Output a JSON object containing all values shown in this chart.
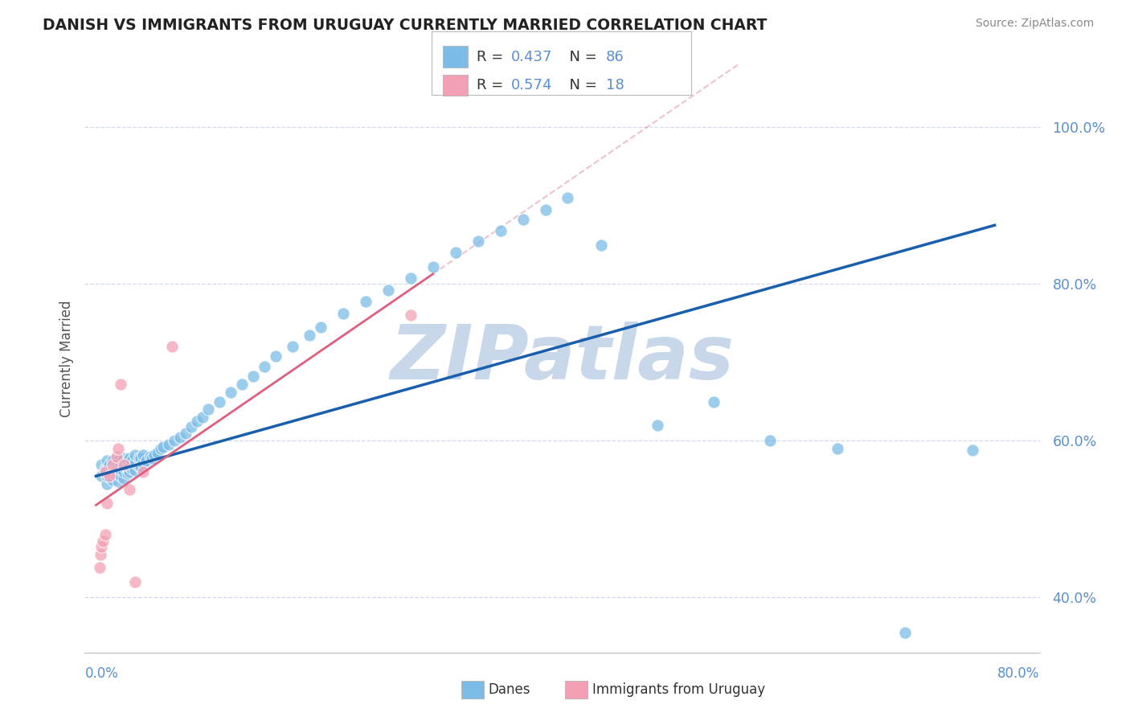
{
  "title": "DANISH VS IMMIGRANTS FROM URUGUAY CURRENTLY MARRIED CORRELATION CHART",
  "source": "Source: ZipAtlas.com",
  "xlabel_bottom_left": "0.0%",
  "xlabel_bottom_right": "80.0%",
  "ylabel": "Currently Married",
  "yticks": [
    "40.0%",
    "60.0%",
    "80.0%",
    "100.0%"
  ],
  "ytick_vals": [
    0.4,
    0.6,
    0.8,
    1.0
  ],
  "xlim": [
    -0.01,
    0.84
  ],
  "ylim": [
    0.33,
    1.08
  ],
  "legend1_r": "0.437",
  "legend1_n": "86",
  "legend2_r": "0.574",
  "legend2_n": "18",
  "legend_label1": "Danes",
  "legend_label2": "Immigrants from Uruguay",
  "blue_color": "#7bbde8",
  "pink_color": "#f4a0b4",
  "trend_blue": "#1a5fad",
  "trend_pink": "#e06080",
  "trend_pink_dashed": "#e090a8",
  "watermark": "ZIPatlas",
  "watermark_color": "#c8d8ea",
  "blue_dots_x": [
    0.005,
    0.005,
    0.008,
    0.01,
    0.01,
    0.01,
    0.01,
    0.012,
    0.012,
    0.015,
    0.015,
    0.015,
    0.015,
    0.018,
    0.018,
    0.018,
    0.02,
    0.02,
    0.02,
    0.02,
    0.022,
    0.022,
    0.022,
    0.025,
    0.025,
    0.025,
    0.025,
    0.028,
    0.028,
    0.028,
    0.03,
    0.03,
    0.03,
    0.032,
    0.032,
    0.035,
    0.035,
    0.035,
    0.038,
    0.038,
    0.04,
    0.04,
    0.042,
    0.042,
    0.045,
    0.048,
    0.05,
    0.052,
    0.055,
    0.058,
    0.06,
    0.065,
    0.07,
    0.075,
    0.08,
    0.085,
    0.09,
    0.095,
    0.1,
    0.11,
    0.12,
    0.13,
    0.14,
    0.15,
    0.16,
    0.175,
    0.19,
    0.2,
    0.22,
    0.24,
    0.26,
    0.28,
    0.3,
    0.32,
    0.34,
    0.36,
    0.38,
    0.4,
    0.42,
    0.45,
    0.5,
    0.55,
    0.6,
    0.66,
    0.72,
    0.78
  ],
  "blue_dots_y": [
    0.555,
    0.57,
    0.565,
    0.545,
    0.555,
    0.565,
    0.575,
    0.56,
    0.57,
    0.55,
    0.558,
    0.565,
    0.575,
    0.555,
    0.562,
    0.572,
    0.548,
    0.557,
    0.565,
    0.575,
    0.555,
    0.563,
    0.572,
    0.552,
    0.56,
    0.568,
    0.578,
    0.558,
    0.565,
    0.575,
    0.56,
    0.568,
    0.578,
    0.565,
    0.575,
    0.562,
    0.572,
    0.582,
    0.568,
    0.578,
    0.568,
    0.578,
    0.572,
    0.582,
    0.575,
    0.58,
    0.578,
    0.582,
    0.585,
    0.59,
    0.592,
    0.595,
    0.6,
    0.605,
    0.61,
    0.618,
    0.625,
    0.63,
    0.64,
    0.65,
    0.662,
    0.672,
    0.682,
    0.695,
    0.708,
    0.72,
    0.735,
    0.745,
    0.762,
    0.778,
    0.792,
    0.808,
    0.822,
    0.84,
    0.855,
    0.868,
    0.882,
    0.895,
    0.91,
    0.85,
    0.62,
    0.65,
    0.6,
    0.59,
    0.355,
    0.588
  ],
  "pink_dots_x": [
    0.003,
    0.004,
    0.005,
    0.006,
    0.008,
    0.008,
    0.01,
    0.012,
    0.015,
    0.018,
    0.02,
    0.022,
    0.025,
    0.03,
    0.035,
    0.042,
    0.068,
    0.28
  ],
  "pink_dots_y": [
    0.438,
    0.455,
    0.465,
    0.472,
    0.48,
    0.56,
    0.52,
    0.555,
    0.57,
    0.58,
    0.59,
    0.672,
    0.57,
    0.538,
    0.42,
    0.56,
    0.72,
    0.76
  ],
  "grid_color": "#d0d8ea",
  "bg_color": "#ffffff"
}
